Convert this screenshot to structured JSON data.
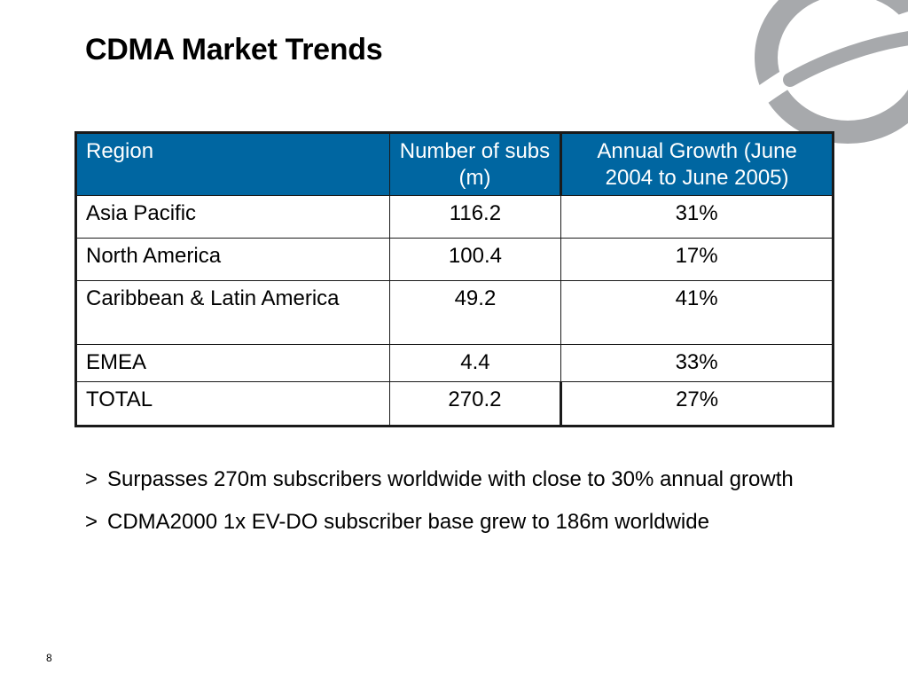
{
  "slide": {
    "title": "CDMA Market Trends",
    "page_number": "8"
  },
  "table": {
    "headers": [
      "Region",
      "Number of subs (m)",
      "Annual Growth (June 2004 to June 2005)"
    ],
    "rows": [
      [
        "Asia Pacific",
        "116.2",
        "31%"
      ],
      [
        "North America",
        "100.4",
        "17%"
      ],
      [
        "Caribbean & Latin America",
        "49.2",
        "41%"
      ],
      [
        "EMEA",
        "4.4",
        "33%"
      ],
      [
        "TOTAL",
        "270.2",
        "27%"
      ]
    ]
  },
  "bullets": {
    "marker": ">",
    "items": [
      "Surpasses 270m subscribers worldwide with close to 30% annual growth",
      "CDMA2000 1x EV-DO subscriber base grew to 186m worldwide"
    ]
  },
  "colors": {
    "header_background": "#0066a1",
    "header_text": "#ffffff",
    "logo": "#a7a9ac"
  }
}
